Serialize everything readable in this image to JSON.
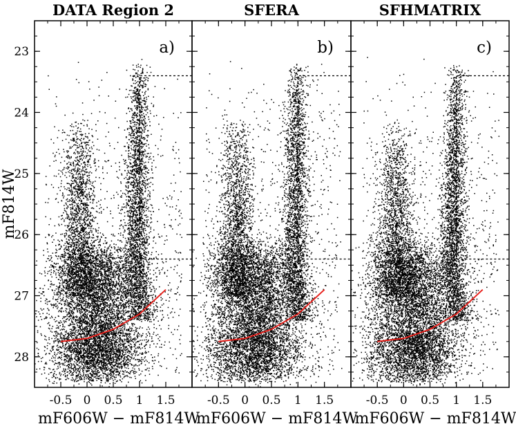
{
  "chart_data": [
    {
      "type": "scatter",
      "title": "DATA Region 2",
      "panel_label": "a)",
      "xlabel": "mF606W − mF814W",
      "ylabel": "mF814W",
      "xlim": [
        -1.0,
        2.0
      ],
      "ylim": [
        28.5,
        22.5
      ],
      "xticks": [
        "-0.5",
        "0",
        "0.5",
        "1",
        "1.5"
      ],
      "yticks": [
        "23",
        "24",
        "25",
        "26",
        "27",
        "28"
      ],
      "marker_color": "#000000",
      "description_of_density": [
        {
          "component": "main sequence / RGB plume",
          "x_center": 0.25,
          "y_range": [
            25.0,
            27.9
          ]
        },
        {
          "component": "red plume",
          "x_center": 1.0,
          "y_range": [
            23.0,
            27.5
          ]
        },
        {
          "component": "blue plume",
          "x_center": -0.1,
          "y_range": [
            24.0,
            27.0
          ]
        }
      ],
      "completeness_curve": {
        "color": "#e8211c",
        "x": [
          -0.5,
          0.0,
          0.5,
          1.0,
          1.5
        ],
        "y": [
          27.75,
          27.7,
          27.55,
          27.3,
          26.9
        ]
      },
      "selection_box": {
        "style": "dashed",
        "x": [
          1.0,
          2.0
        ],
        "y": [
          23.4,
          26.4
        ]
      }
    },
    {
      "type": "scatter",
      "title": "SFERA",
      "panel_label": "b)",
      "xlabel": "mF606W − mF814W",
      "xlim": [
        -1.0,
        2.0
      ],
      "ylim": [
        28.5,
        22.5
      ],
      "xticks": [
        "-0.5",
        "0",
        "0.5",
        "1",
        "1.5"
      ],
      "marker_color": "#000000",
      "completeness_curve": {
        "color": "#e8211c",
        "x": [
          -0.5,
          0.0,
          0.5,
          1.0,
          1.5
        ],
        "y": [
          27.75,
          27.7,
          27.55,
          27.3,
          26.9
        ]
      },
      "selection_box": {
        "style": "dashed",
        "x": [
          1.0,
          2.0
        ],
        "y": [
          23.4,
          26.4
        ]
      }
    },
    {
      "type": "scatter",
      "title": "SFHMATRIX",
      "panel_label": "c)",
      "xlabel": "mF606W − mF814W",
      "xlim": [
        -1.0,
        2.0
      ],
      "ylim": [
        28.5,
        22.5
      ],
      "xticks": [
        "-0.5",
        "0",
        "0.5",
        "1",
        "1.5"
      ],
      "marker_color": "#000000",
      "completeness_curve": {
        "color": "#e8211c",
        "x": [
          -0.5,
          0.0,
          0.5,
          1.0,
          1.5
        ],
        "y": [
          27.75,
          27.7,
          27.55,
          27.3,
          26.9
        ]
      },
      "selection_box": {
        "style": "dashed",
        "x": [
          1.0,
          2.0
        ],
        "y": [
          23.4,
          26.4
        ]
      }
    }
  ]
}
